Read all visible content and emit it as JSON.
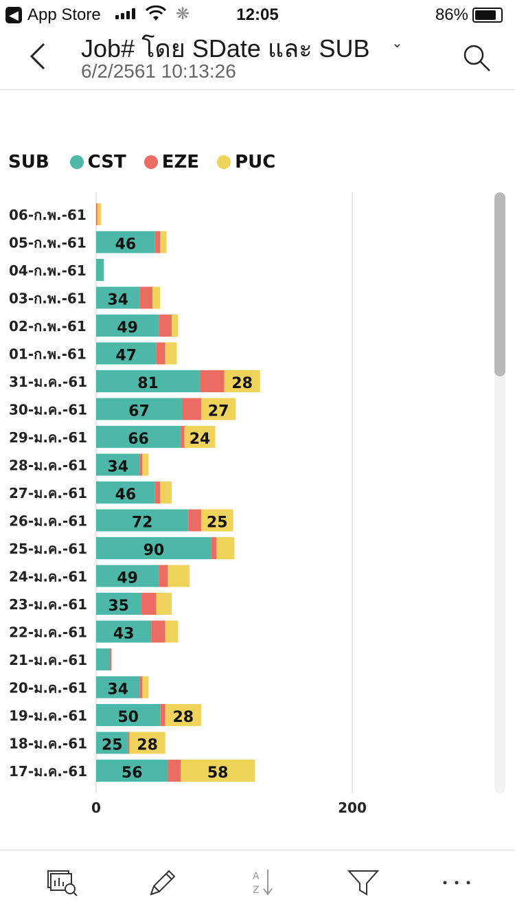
{
  "status_bar": {
    "back_app": "App Store",
    "time": "12:05",
    "battery": "86%"
  },
  "header": {
    "title": "Job# โดย SDate และ SUB",
    "subtitle": "6/2/2561 10:13:26"
  },
  "icons": {
    "back": "chevron-left-icon",
    "search": "search-icon",
    "toolbar": [
      "visual-insights-icon",
      "pencil-icon",
      "sort-icon",
      "filter-icon",
      "more-icon"
    ]
  },
  "colors": {
    "CST": "#4db8a8",
    "EZE": "#ea6c62",
    "PUC": "#efd35a"
  },
  "chart_data": {
    "type": "bar",
    "orientation": "horizontal",
    "stacked": true,
    "legend_title": "SUB",
    "legend_position": "top-left",
    "categories": [
      "06-ก.พ.-61",
      "05-ก.พ.-61",
      "04-ก.พ.-61",
      "03-ก.พ.-61",
      "02-ก.พ.-61",
      "01-ก.พ.-61",
      "31-ม.ค.-61",
      "30-ม.ค.-61",
      "29-ม.ค.-61",
      "28-ม.ค.-61",
      "27-ม.ค.-61",
      "26-ม.ค.-61",
      "25-ม.ค.-61",
      "24-ม.ค.-61",
      "23-ม.ค.-61",
      "22-ม.ค.-61",
      "21-ม.ค.-61",
      "20-ม.ค.-61",
      "19-ม.ค.-61",
      "18-ม.ค.-61",
      "17-ม.ค.-61"
    ],
    "series": [
      {
        "name": "CST",
        "values": [
          0,
          46,
          6,
          34,
          49,
          47,
          81,
          67,
          66,
          34,
          46,
          72,
          90,
          49,
          35,
          43,
          11,
          34,
          50,
          25,
          56
        ]
      },
      {
        "name": "EZE",
        "values": [
          1,
          4,
          0,
          10,
          10,
          7,
          19,
          15,
          3,
          2,
          4,
          10,
          4,
          7,
          12,
          11,
          1,
          2,
          4,
          1,
          10
        ]
      },
      {
        "name": "PUC",
        "values": [
          3,
          5,
          0,
          6,
          5,
          9,
          28,
          27,
          24,
          5,
          9,
          25,
          14,
          17,
          12,
          10,
          0,
          5,
          28,
          28,
          58
        ]
      }
    ],
    "data_labels": [
      {
        "category": "05-ก.พ.-61",
        "series": "CST",
        "label": "46"
      },
      {
        "category": "03-ก.พ.-61",
        "series": "CST",
        "label": "34"
      },
      {
        "category": "02-ก.พ.-61",
        "series": "CST",
        "label": "49"
      },
      {
        "category": "01-ก.พ.-61",
        "series": "CST",
        "label": "47"
      },
      {
        "category": "31-ม.ค.-61",
        "series": "CST",
        "label": "81"
      },
      {
        "category": "31-ม.ค.-61",
        "series": "PUC",
        "label": "28"
      },
      {
        "category": "30-ม.ค.-61",
        "series": "CST",
        "label": "67"
      },
      {
        "category": "30-ม.ค.-61",
        "series": "PUC",
        "label": "27"
      },
      {
        "category": "29-ม.ค.-61",
        "series": "CST",
        "label": "66"
      },
      {
        "category": "29-ม.ค.-61",
        "series": "PUC",
        "label": "24"
      },
      {
        "category": "28-ม.ค.-61",
        "series": "CST",
        "label": "34"
      },
      {
        "category": "27-ม.ค.-61",
        "series": "CST",
        "label": "46"
      },
      {
        "category": "26-ม.ค.-61",
        "series": "CST",
        "label": "72"
      },
      {
        "category": "26-ม.ค.-61",
        "series": "PUC",
        "label": "25"
      },
      {
        "category": "25-ม.ค.-61",
        "series": "CST",
        "label": "90"
      },
      {
        "category": "24-ม.ค.-61",
        "series": "CST",
        "label": "49"
      },
      {
        "category": "23-ม.ค.-61",
        "series": "CST",
        "label": "35"
      },
      {
        "category": "22-ม.ค.-61",
        "series": "CST",
        "label": "43"
      },
      {
        "category": "20-ม.ค.-61",
        "series": "CST",
        "label": "34"
      },
      {
        "category": "19-ม.ค.-61",
        "series": "CST",
        "label": "50"
      },
      {
        "category": "19-ม.ค.-61",
        "series": "PUC",
        "label": "28"
      },
      {
        "category": "18-ม.ค.-61",
        "series": "CST",
        "label": "25"
      },
      {
        "category": "18-ม.ค.-61",
        "series": "PUC",
        "label": "28"
      },
      {
        "category": "17-ม.ค.-61",
        "series": "CST",
        "label": "56"
      },
      {
        "category": "17-ม.ค.-61",
        "series": "PUC",
        "label": "58"
      }
    ],
    "x_ticks": [
      0,
      200
    ],
    "xlim": [
      0,
      320
    ],
    "grid": true
  }
}
